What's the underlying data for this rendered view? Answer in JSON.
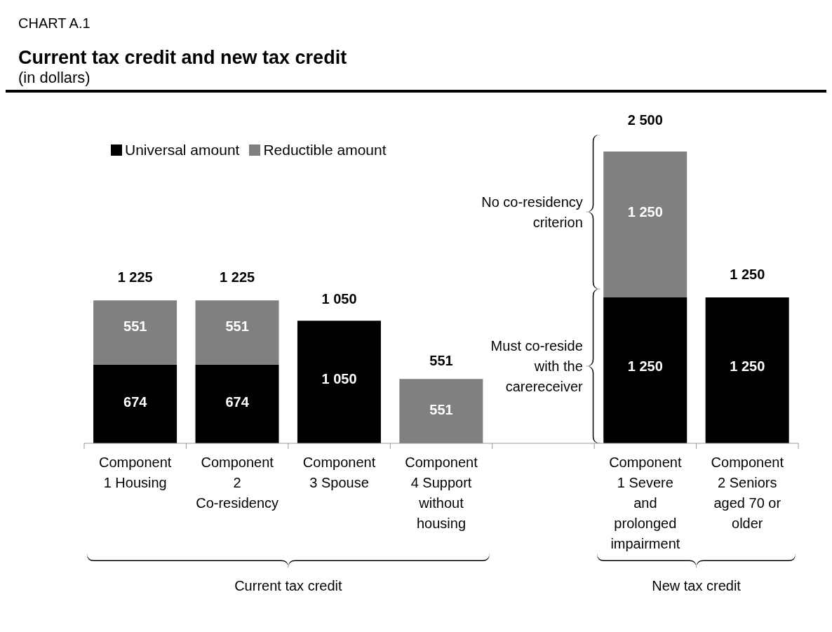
{
  "chart_data": {
    "type": "bar",
    "title": "Current tax credit and new tax credit",
    "subtitle": "(in dollars)",
    "annotations": [
      "CHART A.1",
      "No co-residency criterion",
      "Must co-reside with the carereceiver",
      "Current tax credit",
      "New tax credit"
    ],
    "categories": [
      "Component 1 Housing",
      "Component 2 Co-residency",
      "Component 3 Spouse",
      "Component 4 Support without housing",
      null,
      "Component 1 Severe and prolonged impairment",
      "Component 2 Seniors aged 70 or older"
    ],
    "stacked": true,
    "legend": "top left",
    "series": [
      {
        "name": "Universal amount",
        "color": "#000000",
        "values": [
          674,
          674,
          1050,
          null,
          null,
          1250,
          1250
        ],
        "value_labels": [
          "674",
          "674",
          "1 050",
          null,
          null,
          "1 250",
          "1 250"
        ]
      },
      {
        "name": "Reductible amount",
        "color": "#808080",
        "values": [
          551,
          551,
          null,
          551,
          null,
          1250,
          null
        ],
        "value_labels": [
          "551",
          "551",
          null,
          "551",
          null,
          "1 250",
          null
        ]
      }
    ],
    "totals": [
      "1 225",
      "1 225",
      "1 050",
      "551",
      null,
      "2 500",
      "1 250"
    ]
  }
}
